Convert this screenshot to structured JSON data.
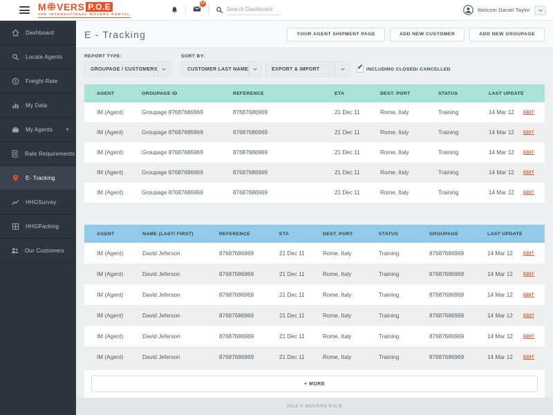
{
  "topbar": {
    "brand": {
      "name_start": "M",
      "name_rest": "VERS",
      "badge": "P.O.E",
      "tagline": "THE INTERNATIONAL MOVERS PORTAL"
    },
    "mail_badge_count": "13",
    "search_placeholder": "Search Dashboard",
    "user": "Welcom Daniel Taylor"
  },
  "sidebar": {
    "items": [
      {
        "label": "Dashboard",
        "icon": "home-icon"
      },
      {
        "label": "Locate Agents",
        "icon": "search-icon"
      },
      {
        "label": "Freight Rate",
        "icon": "coin-icon"
      },
      {
        "label": "My Data",
        "icon": "bar-chart-icon"
      },
      {
        "label": "My Agents",
        "icon": "briefcase-icon",
        "suffix": "+"
      },
      {
        "label": "Rate Requirements",
        "icon": "document-icon"
      },
      {
        "label": "E- Tracking",
        "icon": "pin-icon",
        "active": true
      },
      {
        "label": "HHGSurvey",
        "icon": "line-chart-icon"
      },
      {
        "label": "HHGPacking",
        "icon": "package-icon"
      },
      {
        "label": "Our Customers",
        "icon": "people-icon"
      }
    ]
  },
  "page": {
    "title": "E - Tracking",
    "actions": [
      {
        "label": "YOUR AGENT SHIPMENT PAGE"
      },
      {
        "label": "ADD NEW CUSTOMER"
      },
      {
        "label": "ADD NEW GROUPAGE"
      }
    ]
  },
  "filters": {
    "report_type_label": "REPORT TYPE:",
    "report_type_value": "GROUPAGE / CUSTOMERS",
    "sort_by_label": "SORT BY:",
    "sort_by_value": "CUSTOMER LAST NAME",
    "export_import_value": "EXPORT & IMPORT",
    "checkbox_label": "INCLUDING CLOSED/ CANCELLED",
    "checkbox_checked": true,
    "checkbox_glyph": "✓"
  },
  "groupage_table": {
    "headers": [
      "AGENT",
      "GROUPAGE ID",
      "REFERENCE",
      "ETA",
      "DEST. PORT",
      "STATUS",
      "LAST UPDATE"
    ],
    "edit_label": "EDIT",
    "rows": [
      {
        "agent": "IM (Agent)",
        "groupage_id": "Groupage 87687686969",
        "reference": "87687686969",
        "eta": "21 Dec 11",
        "dest_port": "Rome, Italy",
        "status": "Training",
        "last_update": "14 Mar 12"
      },
      {
        "agent": "IM (Agent)",
        "groupage_id": "Groupage 87687686969",
        "reference": "87687686969",
        "eta": "21 Dec 11",
        "dest_port": "Rome, Italy",
        "status": "Training",
        "last_update": "14 Mar 12"
      },
      {
        "agent": "IM (Agent)",
        "groupage_id": "Groupage 87687686969",
        "reference": "87687686969",
        "eta": "21 Dec 11",
        "dest_port": "Rome, Italy",
        "status": "Training",
        "last_update": "14 Mar 12"
      },
      {
        "agent": "IM (Agent)",
        "groupage_id": "Groupage 87687686969",
        "reference": "87687686969",
        "eta": "21 Dec 11",
        "dest_port": "Rome, Italy",
        "status": "Training",
        "last_update": "14 Mar 12"
      },
      {
        "agent": "IM (Agent)",
        "groupage_id": "Groupage 87687686969",
        "reference": "87687686969",
        "eta": "21 Dec 11",
        "dest_port": "Rome, Italy",
        "status": "Training",
        "last_update": "14 Mar 12"
      }
    ]
  },
  "customers_table": {
    "headers": [
      "AGENT",
      "NAME (LAST/ FIRST)",
      "REFERENCE",
      "ETA",
      "DEST. PORT",
      "STATUS",
      "GROUPAGE",
      "LAST UPDATE"
    ],
    "edit_label": "EDIT",
    "rows": [
      {
        "agent": "IM (Agent)",
        "name": "David Jeferson",
        "reference": "87687686969",
        "eta": "21 Dec 11",
        "dest_port": "Rome, Italy",
        "status": "Training",
        "groupage": "87687686969",
        "last_update": "14 Mar 12"
      },
      {
        "agent": "IM (Agent)",
        "name": "David Jeferson",
        "reference": "87687686969",
        "eta": "21 Dec 11",
        "dest_port": "Rome, Italy",
        "status": "Training",
        "groupage": "87687686969",
        "last_update": "14 Mar 12"
      },
      {
        "agent": "IM (Agent)",
        "name": "David Jeferson",
        "reference": "87687686969",
        "eta": "21 Dec 11",
        "dest_port": "Rome, Italy",
        "status": "Training",
        "groupage": "87687686969",
        "last_update": "14 Mar 12"
      },
      {
        "agent": "IM (Agent)",
        "name": "David Jeferson",
        "reference": "87687686969",
        "eta": "21 Dec 11",
        "dest_port": "Rome, Italy",
        "status": "Training",
        "groupage": "87687686969",
        "last_update": "14 Mar 12"
      },
      {
        "agent": "IM (Agent)",
        "name": "David Jeferson",
        "reference": "87687686969",
        "eta": "21 Dec 11",
        "dest_port": "Rome, Italy",
        "status": "Training",
        "groupage": "87687686969",
        "last_update": "14 Mar 12"
      },
      {
        "agent": "IM (Agent)",
        "name": "David Jeferson",
        "reference": "87687686969",
        "eta": "21 Dec 11",
        "dest_port": "Rome, Italy",
        "status": "Training",
        "groupage": "87687686969",
        "last_update": "14 Mar 12"
      }
    ]
  },
  "more_button": "+ MORE",
  "footer": "2013 © MOVERS P.O.E",
  "colors": {
    "accent_red": "#f04e23",
    "teal_header": "#a9e2d6",
    "blue_header": "#92cbe9",
    "sidebar_bg": "#2e353e",
    "row_stripe": "#efefef"
  }
}
